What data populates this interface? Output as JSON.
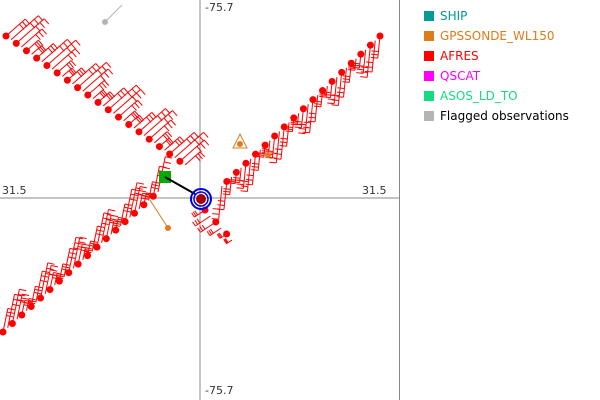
{
  "axes": {
    "top": "-75.7",
    "bottom": "-75.7",
    "left": "31.5",
    "right": "31.5"
  },
  "legend": [
    {
      "label": "SHIP",
      "color": "#009b94"
    },
    {
      "label": "GPSSONDE_WL150",
      "color": "#e07b1a"
    },
    {
      "label": "AFRES",
      "color": "#ff0000"
    },
    {
      "label": "QSCAT",
      "color": "#ff00ff"
    },
    {
      "label": "ASOS_LD_TO",
      "color": "#13dd80"
    },
    {
      "label": "Flagged observations",
      "color": "#b4b4b4",
      "text_color": "#000000"
    }
  ],
  "markers": {
    "center_ring_color": "#0000dd",
    "center_color": "#aa0000",
    "ship_box_color": "#00aa00",
    "motion_arrow_color": "#000000"
  }
}
